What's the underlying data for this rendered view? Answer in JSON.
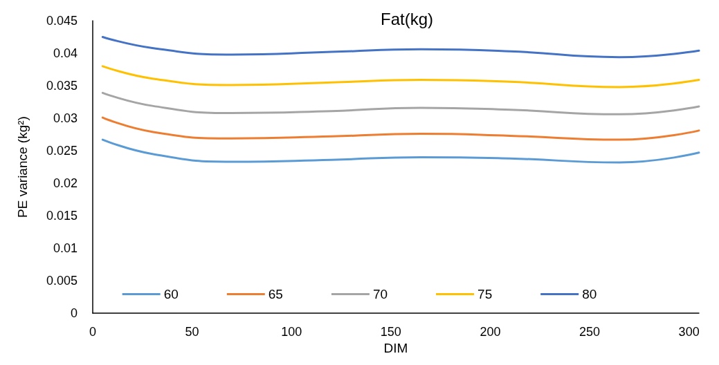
{
  "chart_data": {
    "type": "line",
    "title": "Fat(kg)",
    "xlabel": "DIM",
    "ylabel": "PE variance (kg²)",
    "x": [
      5,
      30,
      70,
      120,
      165,
      210,
      265,
      305
    ],
    "xlim": [
      0,
      305
    ],
    "xticks": [
      0,
      50,
      100,
      150,
      200,
      250,
      300
    ],
    "ylim": [
      0,
      0.045
    ],
    "yticks": [
      0,
      0.005,
      0.01,
      0.015,
      0.02,
      0.025,
      0.03,
      0.035,
      0.04,
      0.045
    ],
    "grid": false,
    "legend": "bottom",
    "marker": "none",
    "line_style": "solid",
    "series": [
      {
        "name": "60",
        "color": "#5b9bd5",
        "values": [
          0.0267,
          0.0245,
          0.0233,
          0.0236,
          0.024,
          0.0238,
          0.0232,
          0.0247
        ]
      },
      {
        "name": "65",
        "color": "#ed7d31",
        "values": [
          0.0301,
          0.0279,
          0.0269,
          0.0272,
          0.0276,
          0.0273,
          0.0267,
          0.0281
        ]
      },
      {
        "name": "70",
        "color": "#a5a5a5",
        "values": [
          0.0339,
          0.0319,
          0.0308,
          0.0311,
          0.0316,
          0.0313,
          0.0306,
          0.0318
        ]
      },
      {
        "name": "75",
        "color": "#ffc000",
        "values": [
          0.038,
          0.0361,
          0.0351,
          0.0355,
          0.0359,
          0.0356,
          0.0348,
          0.0359
        ]
      },
      {
        "name": "80",
        "color": "#4472c4",
        "values": [
          0.0425,
          0.0408,
          0.0398,
          0.0402,
          0.0406,
          0.0403,
          0.0394,
          0.0404
        ]
      }
    ]
  }
}
